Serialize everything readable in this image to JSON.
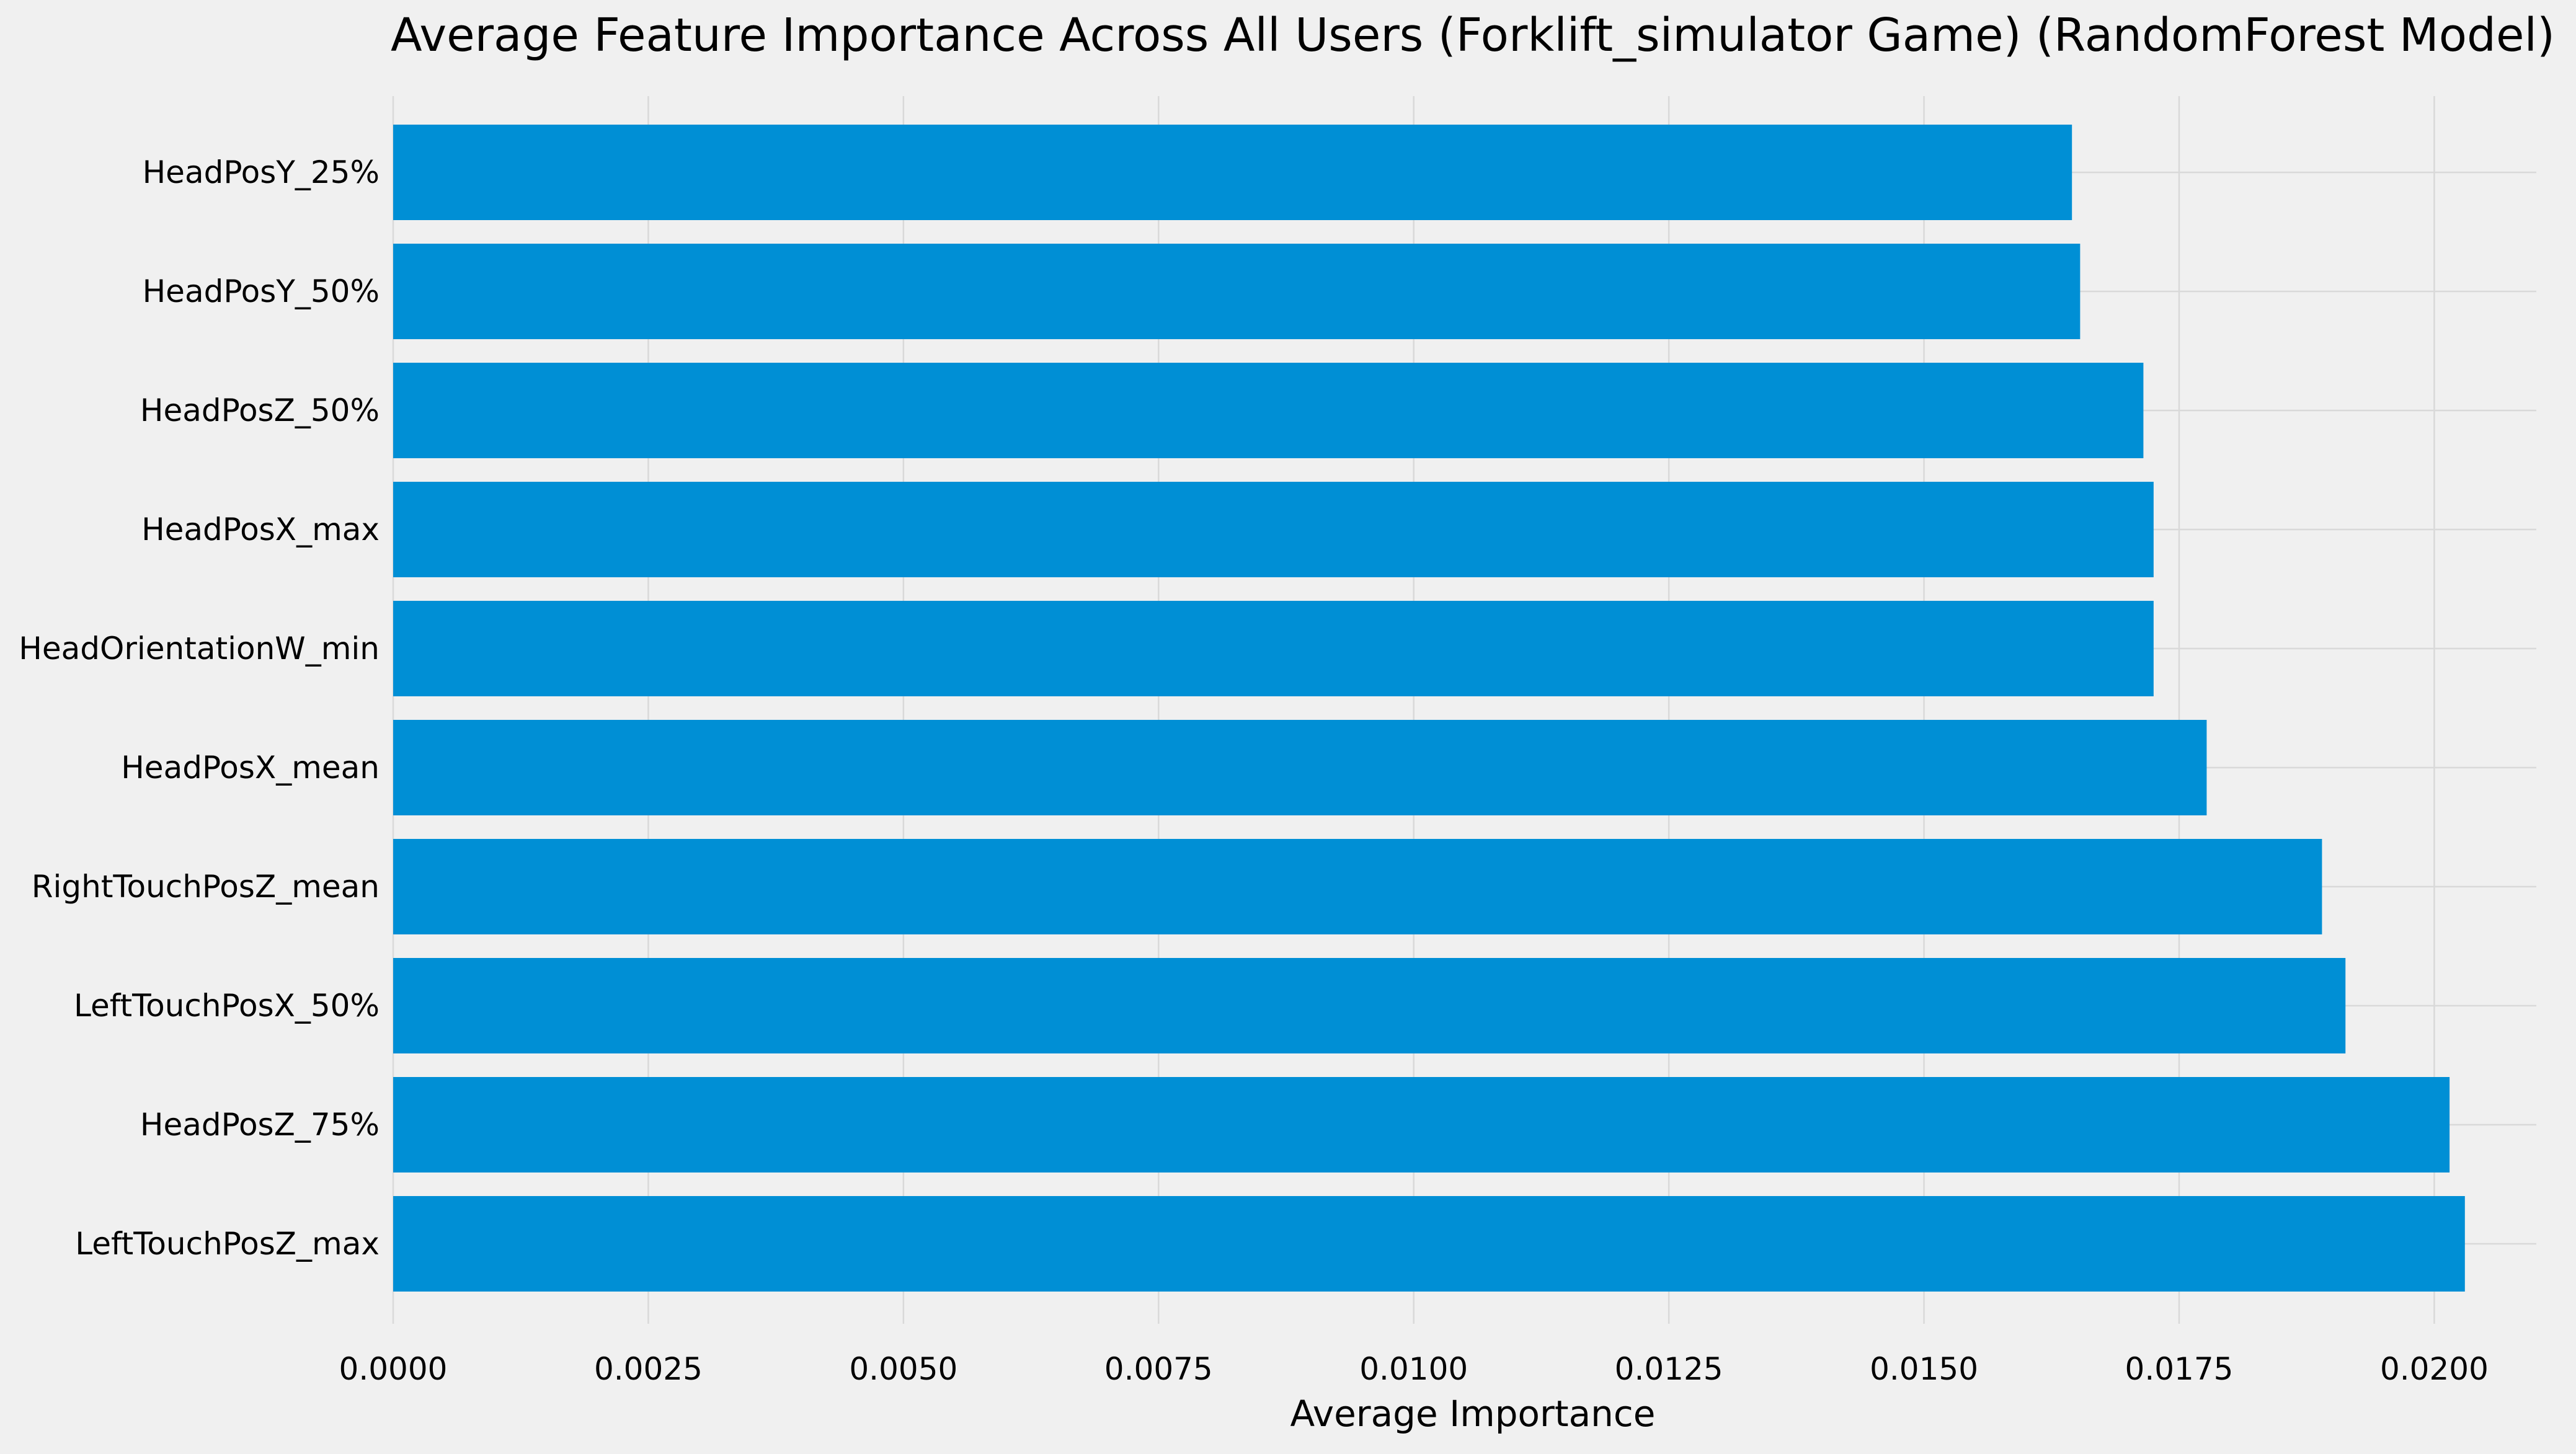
{
  "chart_data": {
    "type": "bar",
    "orientation": "horizontal",
    "title": "Average Feature Importance Across All Users (Forklift_simulator Game) (RandomForest Model)",
    "xlabel": "Average Importance",
    "ylabel": "",
    "categories": [
      "HeadPosY_25%",
      "HeadPosY_50%",
      "HeadPosZ_50%",
      "HeadPosX_max",
      "HeadOrientationW_min",
      "HeadPosX_mean",
      "RightTouchPosZ_mean",
      "LeftTouchPosX_50%",
      "HeadPosZ_75%",
      "LeftTouchPosZ_max"
    ],
    "values": [
      0.01645,
      0.01653,
      0.01715,
      0.01725,
      0.01725,
      0.01777,
      0.0189,
      0.01913,
      0.02015,
      0.0203
    ],
    "xlim": [
      0,
      0.021
    ],
    "xticks": [
      "0.0000",
      "0.0025",
      "0.0050",
      "0.0075",
      "0.0100",
      "0.0125",
      "0.0150",
      "0.0175",
      "0.0200"
    ],
    "grid": true,
    "bar_color": "#008fd5",
    "background_color": "#f0f0f0",
    "grid_color": "#d9d9d9"
  }
}
